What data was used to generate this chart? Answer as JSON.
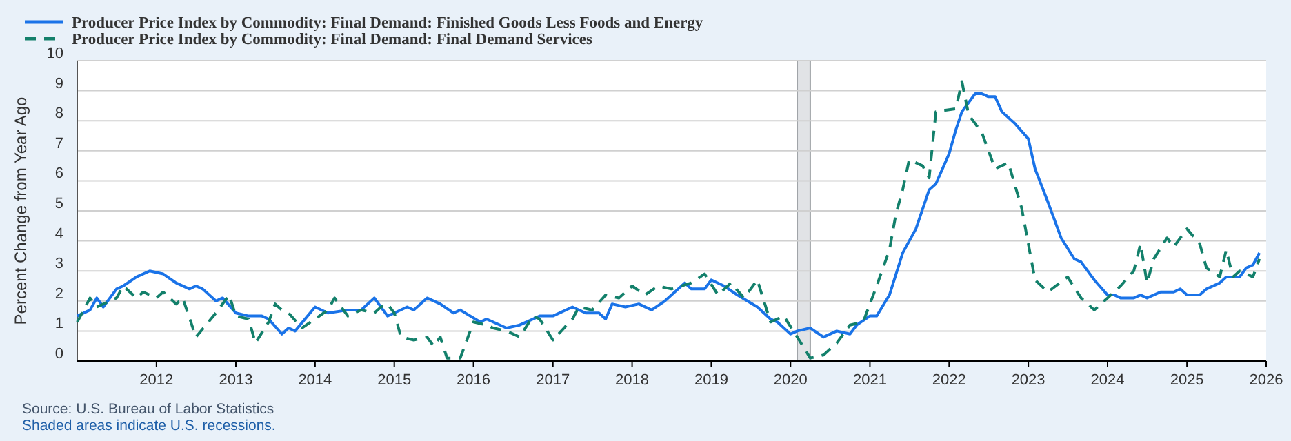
{
  "chart_data": {
    "type": "line",
    "ylabel": "Percent Change from Year Ago",
    "legend": "top",
    "grid": "y",
    "xlim": [
      "2011-01",
      "2026-01"
    ],
    "xticks": [
      {
        "value": "2012",
        "label": "2012"
      },
      {
        "value": "2013",
        "label": "2013"
      },
      {
        "value": "2014",
        "label": "2014"
      },
      {
        "value": "2015",
        "label": "2015"
      },
      {
        "value": "2016",
        "label": "2016"
      },
      {
        "value": "2017",
        "label": "2017"
      },
      {
        "value": "2018",
        "label": "2018"
      },
      {
        "value": "2019",
        "label": "2019"
      },
      {
        "value": "2020",
        "label": "2020"
      },
      {
        "value": "2021",
        "label": "2021"
      },
      {
        "value": "2022",
        "label": "2022"
      },
      {
        "value": "2023",
        "label": "2023"
      },
      {
        "value": "2024",
        "label": "2024"
      },
      {
        "value": "2025",
        "label": "2025"
      },
      {
        "value": "2026",
        "label": "2026"
      }
    ],
    "ylim": [
      0,
      10
    ],
    "yticks": [
      0,
      1,
      2,
      3,
      4,
      5,
      6,
      7,
      8,
      9,
      10
    ],
    "bands": [
      {
        "axis": "x",
        "from": "2020-02",
        "to": "2020-04",
        "color": "#e1e3e6"
      }
    ],
    "annotations": [
      "Source: U.S. Bureau of Labor Statistics",
      "Shaded areas indicate U.S. recessions."
    ],
    "series": [
      {
        "name": "Producer Price Index by Commodity: Final Demand: Finished Goods Less Foods and Energy",
        "color": "#1a73e8",
        "line_style": "solid",
        "x": [
          "2011-01",
          "2011-03",
          "2011-04",
          "2011-05",
          "2011-07",
          "2011-08",
          "2011-10",
          "2011-12",
          "2012-02",
          "2012-04",
          "2012-06",
          "2012-07",
          "2012-08",
          "2012-10",
          "2012-11",
          "2013-01",
          "2013-03",
          "2013-05",
          "2013-06",
          "2013-08",
          "2013-09",
          "2013-10",
          "2014-01",
          "2014-03",
          "2014-06",
          "2014-08",
          "2014-10",
          "2014-12",
          "2015-01",
          "2015-03",
          "2015-04",
          "2015-06",
          "2015-08",
          "2015-10",
          "2015-11",
          "2016-02",
          "2016-03",
          "2016-06",
          "2016-08",
          "2016-11",
          "2017-01",
          "2017-04",
          "2017-06",
          "2017-08",
          "2017-09",
          "2017-10",
          "2017-12",
          "2018-02",
          "2018-04",
          "2018-06",
          "2018-09",
          "2018-10",
          "2018-12",
          "2019-01",
          "2019-03",
          "2019-05",
          "2019-08",
          "2019-10",
          "2019-11",
          "2020-01",
          "2020-02",
          "2020-04",
          "2020-06",
          "2020-08",
          "2020-10",
          "2020-11",
          "2021-01",
          "2021-02",
          "2021-04",
          "2021-06",
          "2021-08",
          "2021-10",
          "2021-11",
          "2022-01",
          "2022-02",
          "2022-03",
          "2022-05",
          "2022-06",
          "2022-07",
          "2022-08",
          "2022-09",
          "2022-11",
          "2023-01",
          "2023-02",
          "2023-04",
          "2023-06",
          "2023-08",
          "2023-09",
          "2023-11",
          "2024-01",
          "2024-02",
          "2024-03",
          "2024-04",
          "2024-05",
          "2024-06",
          "2024-07",
          "2024-09",
          "2024-11",
          "2024-12",
          "2025-01",
          "2025-03",
          "2025-04",
          "2025-06",
          "2025-07",
          "2025-09",
          "2025-10",
          "2025-11",
          "2025-12"
        ],
        "values": [
          1.5,
          1.7,
          2.1,
          1.8,
          2.4,
          2.5,
          2.8,
          3.0,
          2.9,
          2.6,
          2.4,
          2.5,
          2.4,
          2.0,
          2.1,
          1.6,
          1.5,
          1.5,
          1.4,
          0.9,
          1.1,
          1.0,
          1.8,
          1.6,
          1.7,
          1.7,
          2.1,
          1.5,
          1.6,
          1.8,
          1.7,
          2.1,
          1.9,
          1.6,
          1.7,
          1.3,
          1.4,
          1.1,
          1.2,
          1.5,
          1.5,
          1.8,
          1.6,
          1.6,
          1.4,
          1.9,
          1.8,
          1.9,
          1.7,
          2.0,
          2.6,
          2.4,
          2.4,
          2.7,
          2.5,
          2.2,
          1.8,
          1.4,
          1.3,
          0.9,
          1.0,
          1.1,
          0.8,
          1.0,
          0.9,
          1.2,
          1.5,
          1.5,
          2.2,
          3.6,
          4.4,
          5.7,
          5.9,
          6.9,
          7.7,
          8.3,
          8.9,
          8.9,
          8.8,
          8.8,
          8.3,
          7.9,
          7.4,
          6.4,
          5.3,
          4.1,
          3.4,
          3.3,
          2.7,
          2.2,
          2.2,
          2.1,
          2.1,
          2.1,
          2.2,
          2.1,
          2.3,
          2.3,
          2.4,
          2.2,
          2.2,
          2.4,
          2.6,
          2.8,
          2.8,
          3.1,
          3.2,
          3.6
        ]
      },
      {
        "name": "Producer Price Index by Commodity: Final Demand: Final Demand Services",
        "color": "#13806b",
        "line_style": "dashed",
        "x": [
          "2011-01",
          "2011-03",
          "2011-04",
          "2011-07",
          "2011-08",
          "2011-10",
          "2011-11",
          "2012-01",
          "2012-02",
          "2012-04",
          "2012-05",
          "2012-07",
          "2012-10",
          "2012-12",
          "2013-01",
          "2013-03",
          "2013-04",
          "2013-06",
          "2013-07",
          "2013-08",
          "2013-09",
          "2013-11",
          "2014-01",
          "2014-03",
          "2014-04",
          "2014-06",
          "2014-08",
          "2014-10",
          "2014-11",
          "2014-12",
          "2015-01",
          "2015-02",
          "2015-04",
          "2015-06",
          "2015-07",
          "2015-08",
          "2015-09",
          "2015-11",
          "2016-01",
          "2016-03",
          "2016-04",
          "2016-06",
          "2016-08",
          "2016-10",
          "2016-11",
          "2017-01",
          "2017-04",
          "2017-05",
          "2017-07",
          "2017-09",
          "2017-11",
          "2018-01",
          "2018-03",
          "2018-05",
          "2018-07",
          "2018-10",
          "2018-12",
          "2019-02",
          "2019-04",
          "2019-06",
          "2019-08",
          "2019-10",
          "2019-12",
          "2020-02",
          "2020-04",
          "2020-06",
          "2020-08",
          "2020-10",
          "2020-12",
          "2021-01",
          "2021-02",
          "2021-04",
          "2021-05",
          "2021-06",
          "2021-07",
          "2021-09",
          "2021-10",
          "2021-11",
          "2022-02",
          "2022-03",
          "2022-04",
          "2022-06",
          "2022-08",
          "2022-10",
          "2022-12",
          "2023-01",
          "2023-02",
          "2023-04",
          "2023-07",
          "2023-09",
          "2023-11",
          "2024-01",
          "2024-03",
          "2024-05",
          "2024-06",
          "2024-07",
          "2024-08",
          "2024-10",
          "2024-11",
          "2025-01",
          "2025-03",
          "2025-04",
          "2025-06",
          "2025-07",
          "2025-08",
          "2025-09",
          "2025-11",
          "2025-12"
        ],
        "values": [
          1.3,
          2.1,
          1.8,
          2.1,
          2.5,
          2.1,
          2.3,
          2.1,
          2.3,
          1.9,
          2.1,
          0.8,
          1.6,
          2.2,
          1.5,
          1.4,
          0.6,
          1.3,
          1.9,
          1.7,
          1.6,
          1.1,
          1.4,
          1.7,
          2.1,
          1.5,
          1.7,
          1.6,
          1.8,
          1.9,
          1.6,
          0.8,
          0.7,
          0.8,
          0.5,
          0.8,
          0.1,
          0.1,
          1.3,
          1.2,
          1.1,
          1.0,
          0.8,
          1.5,
          1.4,
          0.7,
          1.4,
          1.8,
          1.7,
          2.2,
          2.1,
          2.5,
          2.2,
          2.5,
          2.4,
          2.6,
          2.9,
          2.2,
          2.6,
          2.1,
          2.7,
          1.3,
          1.5,
          0.8,
          0.1,
          0.2,
          0.6,
          1.2,
          1.3,
          1.9,
          2.5,
          3.7,
          4.9,
          5.7,
          6.7,
          6.5,
          6.1,
          8.3,
          8.4,
          9.3,
          8.2,
          7.6,
          6.4,
          6.6,
          5.1,
          3.9,
          2.7,
          2.3,
          2.8,
          2.1,
          1.7,
          2.1,
          2.5,
          3.0,
          3.9,
          2.6,
          3.4,
          4.1,
          3.8,
          4.4,
          3.9,
          3.1,
          2.8,
          3.7,
          2.8,
          3.0,
          2.8,
          3.4
        ]
      }
    ]
  }
}
